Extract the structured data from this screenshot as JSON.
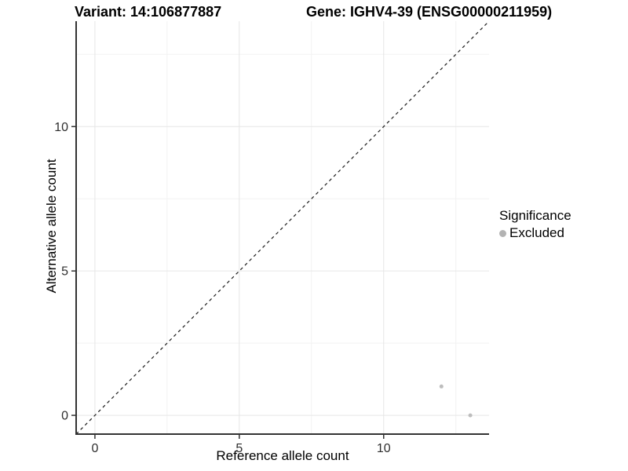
{
  "chart_data": {
    "type": "scatter",
    "titles": {
      "left": "Variant: 14:106877887",
      "right": "Gene: IGHV4-39 (ENSG00000211959)"
    },
    "xlabel": "Reference allele count",
    "ylabel": "Alternative allele count",
    "xlim": [
      -0.65,
      13.65
    ],
    "ylim": [
      -0.65,
      13.65
    ],
    "x_major_ticks": [
      0,
      5,
      10
    ],
    "y_major_ticks": [
      0,
      5,
      10
    ],
    "x_minor_ticks": [
      2.5,
      7.5,
      12.5
    ],
    "y_minor_ticks": [
      2.5,
      7.5,
      12.5
    ],
    "grid": "major+minor",
    "reference_line": {
      "type": "identity y=x",
      "style": "dashed",
      "color": "#1a1a1a"
    },
    "series": [
      {
        "name": "Excluded",
        "color": "#bdbdbd",
        "point_radius": 2.5,
        "points": [
          {
            "x": 12,
            "y": 1
          },
          {
            "x": 13,
            "y": 0
          }
        ]
      }
    ],
    "legend": {
      "title": "Significance",
      "position": "right",
      "items": [
        {
          "label": "Excluded",
          "color": "#b3b3b3"
        }
      ]
    }
  },
  "colors": {
    "background": "#ffffff",
    "axis_line": "#333333",
    "grid_major": "#e6e6e6",
    "grid_minor": "#f2f2f2",
    "tick_label": "#2e2e2e",
    "title_text": "#000000"
  }
}
